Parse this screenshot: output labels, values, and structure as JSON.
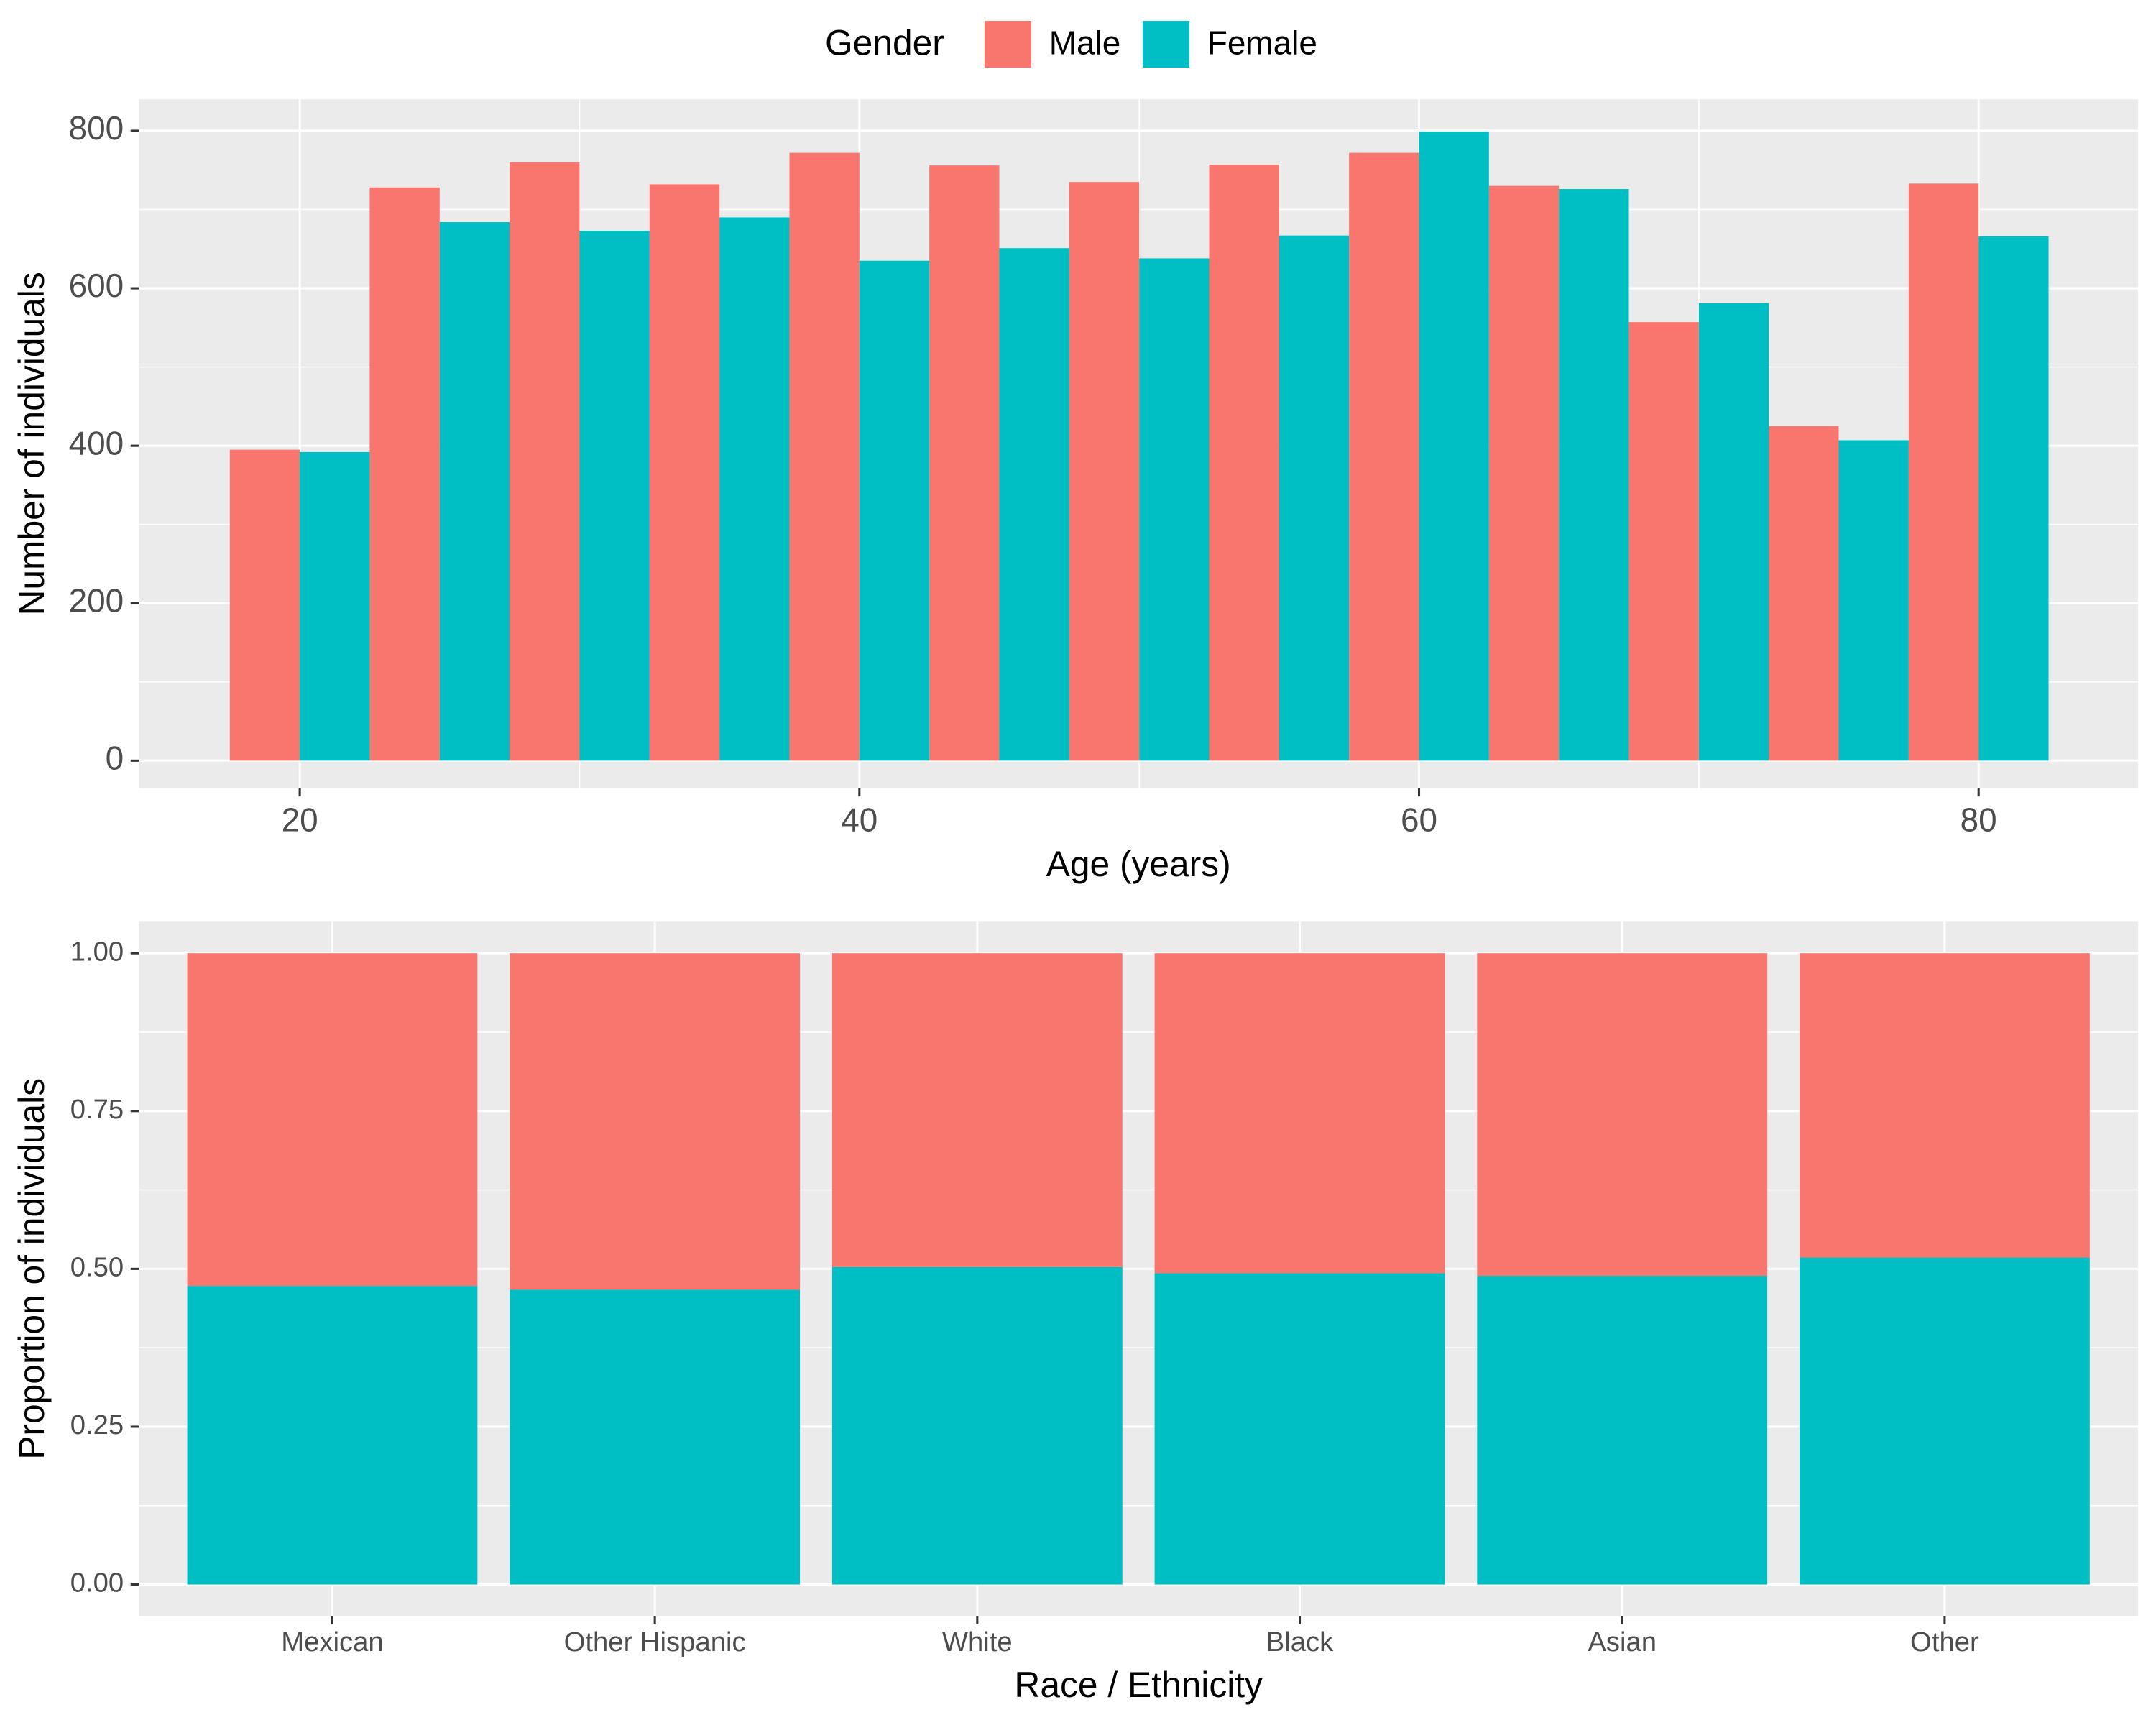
{
  "chart_data": [
    {
      "type": "histogram",
      "legend_title": "Gender",
      "legend_position": "top",
      "x_label": "Age (years)",
      "y_label": "Number of individuals",
      "bins": [
        17.5,
        22.5,
        27.5,
        32.5,
        37.5,
        42.5,
        47.5,
        52.5,
        57.5,
        62.5,
        67.5,
        72.5,
        77.5,
        82.5
      ],
      "series": [
        {
          "name": "Male",
          "color": "#f8766d",
          "values": [
            395,
            728,
            760,
            732,
            772,
            756,
            735,
            757,
            772,
            730,
            557,
            425,
            733
          ]
        },
        {
          "name": "Female",
          "color": "#00bfc4",
          "values": [
            392,
            684,
            673,
            690,
            635,
            651,
            638,
            667,
            799,
            726,
            581,
            407,
            666
          ]
        }
      ],
      "xlim": [
        14.25,
        85.7
      ],
      "xticks": [
        20,
        40,
        60,
        80
      ],
      "x_minor_ticks": [
        30,
        50,
        70
      ],
      "ylim": [
        -35,
        840
      ],
      "yticks": [
        0,
        200,
        400,
        600,
        800
      ],
      "y_minor_ticks": [
        100,
        300,
        500,
        700
      ],
      "grid": true
    },
    {
      "type": "stacked_bar",
      "x_label": "Race / Ethnicity",
      "y_label": "Proportion of individuals",
      "categories": [
        "Mexican",
        "Other Hispanic",
        "White",
        "Black",
        "Asian",
        "Other"
      ],
      "series": [
        {
          "color": "#00bfc4",
          "values": [
            0.473,
            0.467,
            0.503,
            0.493,
            0.489,
            0.518
          ]
        },
        {
          "color": "#f8766d",
          "values": [
            0.527,
            0.533,
            0.497,
            0.507,
            0.511,
            0.482
          ]
        }
      ],
      "ylim": [
        -0.05,
        1.05
      ],
      "yticks": [
        {
          "value": 0,
          "label": "0.00"
        },
        {
          "value": 0.25,
          "label": "0.25"
        },
        {
          "value": 0.5,
          "label": "0.50"
        },
        {
          "value": 0.75,
          "label": "0.75"
        },
        {
          "value": 1,
          "label": "1.00"
        }
      ],
      "y_minor_ticks": [
        0.125,
        0.375,
        0.625,
        0.875
      ],
      "grid": true
    }
  ]
}
